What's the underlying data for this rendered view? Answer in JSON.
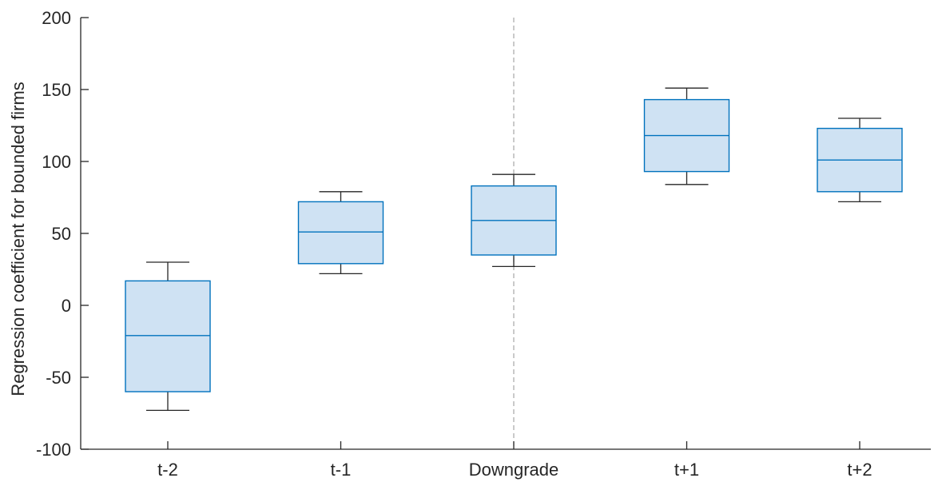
{
  "chart_data": {
    "type": "box",
    "title": "",
    "xlabel": "",
    "ylabel": "Regression coefficient for bounded firms",
    "ylim": [
      -100,
      200
    ],
    "yticks": [
      -100,
      -50,
      0,
      50,
      100,
      150,
      200
    ],
    "categories": [
      "t-2",
      "t-1",
      "Downgrade",
      "t+1",
      "t+2"
    ],
    "boxes": [
      {
        "category": "t-2",
        "whisker_low": -73,
        "q1": -60,
        "median": -21,
        "q3": 17,
        "whisker_high": 30
      },
      {
        "category": "t-1",
        "whisker_low": 22,
        "q1": 29,
        "median": 51,
        "q3": 72,
        "whisker_high": 79
      },
      {
        "category": "Downgrade",
        "whisker_low": 27,
        "q1": 35,
        "median": 59,
        "q3": 83,
        "whisker_high": 91
      },
      {
        "category": "t+1",
        "whisker_low": 84,
        "q1": 93,
        "median": 118,
        "q3": 143,
        "whisker_high": 151
      },
      {
        "category": "t+2",
        "whisker_low": 72,
        "q1": 79,
        "median": 101,
        "q3": 123,
        "whisker_high": 130
      }
    ],
    "reference_line": {
      "category": "Downgrade",
      "style": "dashed"
    },
    "grid": false,
    "colors": {
      "box_fill": "#cfe2f3",
      "box_edge": "#0072bd",
      "whisker": "#262626",
      "axis": "#262626",
      "reference_line": "#a6a6a6"
    }
  }
}
